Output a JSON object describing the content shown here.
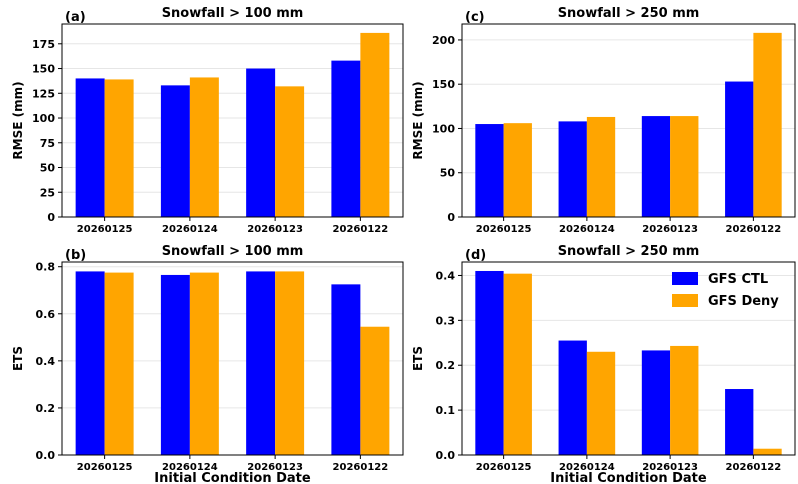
{
  "colors": {
    "ctl": "#0000ff",
    "deny": "#ffa500"
  },
  "legend": {
    "position": "top-right of panel (d)",
    "entries": [
      {
        "name": "GFS CTL",
        "color": "#0000ff"
      },
      {
        "name": "GFS Deny",
        "color": "#ffa500"
      }
    ]
  },
  "chart_data": [
    {
      "panel": "(a)",
      "type": "bar",
      "title": "Snowfall > 100 mm",
      "ylabel": "RMSE (mm)",
      "xlabel": "",
      "categories": [
        "20260125",
        "20260124",
        "20260123",
        "20260122"
      ],
      "series": [
        {
          "name": "GFS CTL",
          "values": [
            140,
            133,
            150,
            158
          ]
        },
        {
          "name": "GFS Deny",
          "values": [
            139,
            141,
            132,
            186
          ]
        }
      ],
      "ylim": [
        0,
        195
      ],
      "yticks": [
        0,
        25,
        50,
        75,
        100,
        125,
        150,
        175
      ],
      "grid": true
    },
    {
      "panel": "(c)",
      "type": "bar",
      "title": "Snowfall > 250 mm",
      "ylabel": "RMSE (mm)",
      "xlabel": "",
      "categories": [
        "20260125",
        "20260124",
        "20260123",
        "20260122"
      ],
      "series": [
        {
          "name": "GFS CTL",
          "values": [
            105,
            108,
            114,
            153
          ]
        },
        {
          "name": "GFS Deny",
          "values": [
            106,
            113,
            114,
            208
          ]
        }
      ],
      "ylim": [
        0,
        218
      ],
      "yticks": [
        0,
        50,
        100,
        150,
        200
      ],
      "grid": true
    },
    {
      "panel": "(b)",
      "type": "bar",
      "title": "Snowfall > 100 mm",
      "ylabel": "ETS",
      "xlabel": "Initial Condition Date",
      "categories": [
        "20260125",
        "20260124",
        "20260123",
        "20260122"
      ],
      "series": [
        {
          "name": "GFS CTL",
          "values": [
            0.78,
            0.765,
            0.78,
            0.725
          ]
        },
        {
          "name": "GFS Deny",
          "values": [
            0.775,
            0.775,
            0.78,
            0.545
          ]
        }
      ],
      "ylim": [
        0,
        0.82
      ],
      "yticks": [
        0.0,
        0.2,
        0.4,
        0.6,
        0.8
      ],
      "grid": true
    },
    {
      "panel": "(d)",
      "type": "bar",
      "title": "Snowfall > 250 mm",
      "ylabel": "ETS",
      "xlabel": "Initial Condition Date",
      "categories": [
        "20260125",
        "20260124",
        "20260123",
        "20260122"
      ],
      "series": [
        {
          "name": "GFS CTL",
          "values": [
            0.41,
            0.255,
            0.233,
            0.147
          ]
        },
        {
          "name": "GFS Deny",
          "values": [
            0.404,
            0.23,
            0.243,
            0.014
          ]
        }
      ],
      "ylim": [
        0,
        0.43
      ],
      "yticks": [
        0.0,
        0.1,
        0.2,
        0.3,
        0.4
      ],
      "grid": true
    }
  ]
}
